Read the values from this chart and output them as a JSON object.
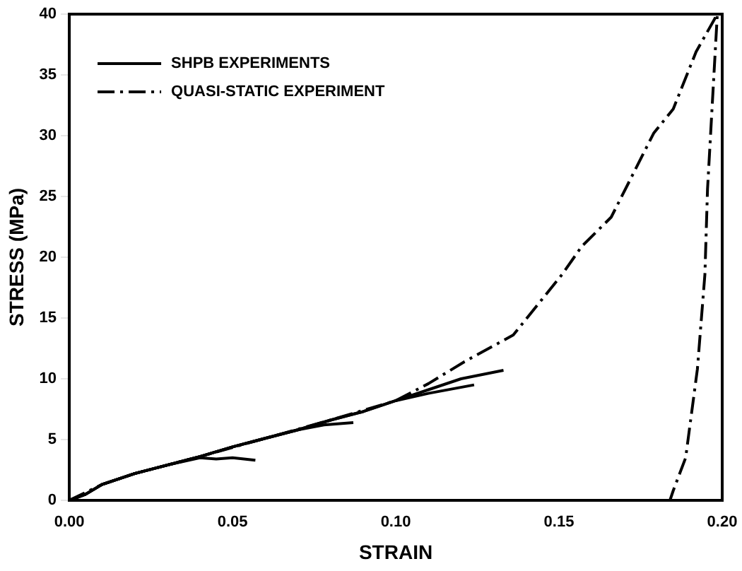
{
  "chart_data": {
    "type": "line",
    "xlabel": "STRAIN",
    "ylabel": "STRESS (MPa)",
    "xlim": [
      0,
      0.2
    ],
    "ylim": [
      0,
      40
    ],
    "xticks": [
      {
        "value": 0,
        "label": "0.00"
      },
      {
        "value": 0.05,
        "label": "0.05"
      },
      {
        "value": 0.1,
        "label": "0.10"
      },
      {
        "value": 0.15,
        "label": "0.15"
      },
      {
        "value": 0.2,
        "label": "0.20"
      }
    ],
    "yticks": [
      0,
      5,
      10,
      15,
      20,
      25,
      30,
      35,
      40
    ],
    "grid": false,
    "legend": "top left",
    "marker": "none",
    "series": [
      {
        "name": "SHPB EXPERIMENTS",
        "color": "#000000",
        "line_style": "solid",
        "x": [
          0,
          0.005,
          0.01,
          0.02,
          0.03,
          0.04,
          0.045,
          0.05,
          0.057
        ],
        "values": [
          0,
          0.5,
          1.3,
          2.2,
          2.9,
          3.5,
          3.4,
          3.5,
          3.3
        ]
      },
      {
        "color": "#000000",
        "line_style": "solid",
        "x": [
          0,
          0.005,
          0.01,
          0.02,
          0.03,
          0.04,
          0.05,
          0.06,
          0.07,
          0.078,
          0.087
        ],
        "values": [
          0,
          0.5,
          1.3,
          2.2,
          2.9,
          3.6,
          4.4,
          5.1,
          5.8,
          6.2,
          6.4
        ]
      },
      {
        "color": "#000000",
        "line_style": "solid",
        "x": [
          0,
          0.005,
          0.01,
          0.02,
          0.03,
          0.04,
          0.05,
          0.06,
          0.07,
          0.08,
          0.09,
          0.1,
          0.11,
          0.124
        ],
        "values": [
          0,
          0.5,
          1.3,
          2.2,
          2.9,
          3.6,
          4.4,
          5.1,
          5.8,
          6.6,
          7.3,
          8.2,
          8.8,
          9.5
        ]
      },
      {
        "color": "#000000",
        "line_style": "solid",
        "x": [
          0,
          0.005,
          0.01,
          0.02,
          0.03,
          0.04,
          0.05,
          0.06,
          0.07,
          0.08,
          0.09,
          0.1,
          0.11,
          0.12,
          0.133
        ],
        "values": [
          0,
          0.5,
          1.3,
          2.2,
          2.9,
          3.6,
          4.4,
          5.1,
          5.8,
          6.6,
          7.3,
          8.2,
          9.1,
          10,
          10.7
        ]
      },
      {
        "name": "QUASI-STATIC EXPERIMENT",
        "color": "#000000",
        "line_style": "dashed",
        "x": [
          0,
          0.01,
          0.02,
          0.04,
          0.06,
          0.08,
          0.1,
          0.11,
          0.121,
          0.136,
          0.151,
          0.157,
          0.166,
          0.179,
          0.185,
          0.192,
          0.1985,
          0.1955,
          0.1947,
          0.1924,
          0.1888,
          0.185,
          0.184
        ],
        "values": [
          0,
          1.3,
          2.2,
          3.6,
          5.1,
          6.6,
          8.2,
          9.6,
          11.4,
          13.6,
          18.6,
          20.9,
          23.3,
          30.2,
          32.2,
          36.9,
          40,
          25.6,
          18.6,
          10.8,
          3.5,
          0.8,
          0
        ]
      }
    ]
  }
}
